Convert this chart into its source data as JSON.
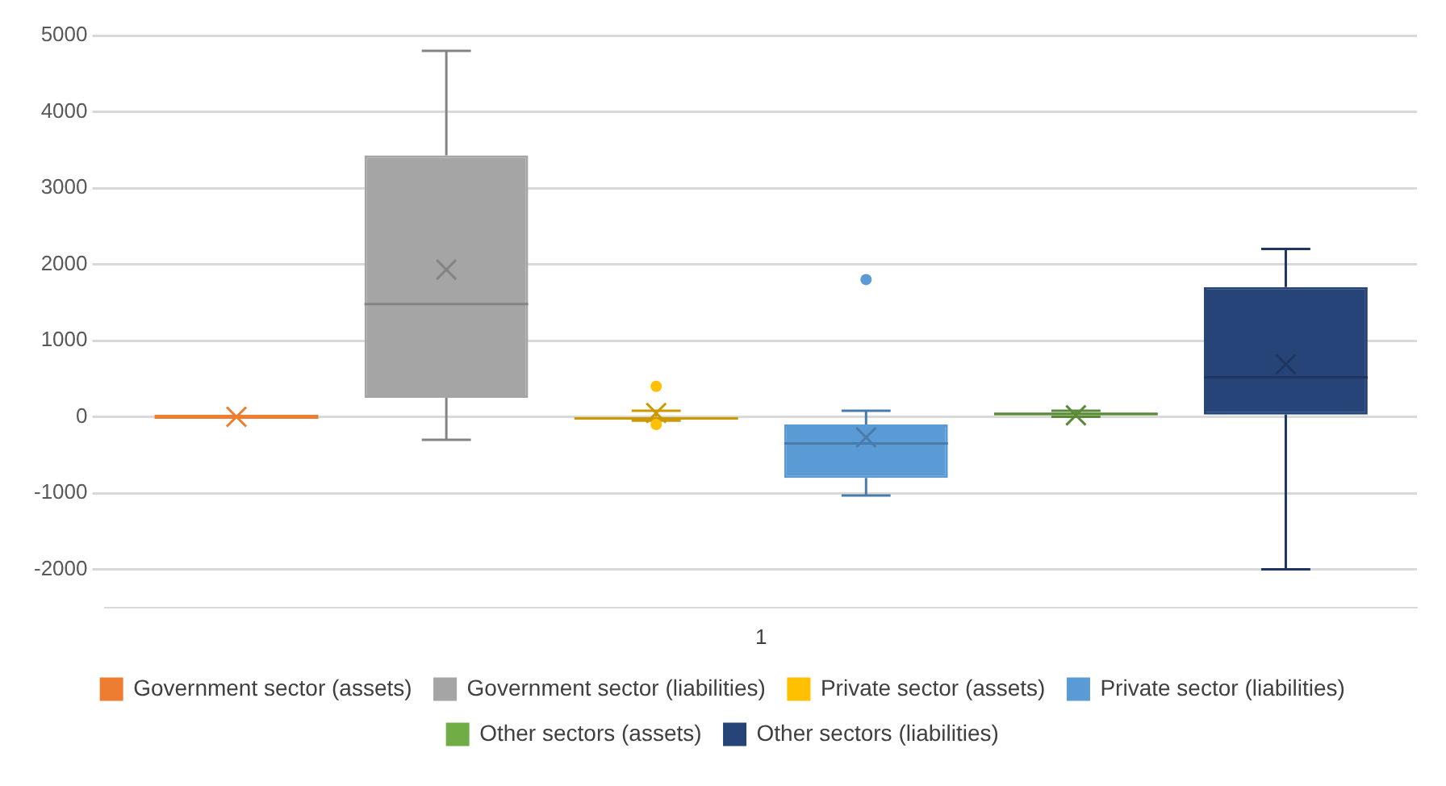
{
  "chart_data": {
    "type": "box",
    "categories": [
      "1"
    ],
    "ylim": [
      -2500,
      5000
    ],
    "yticks": [
      -2000,
      -1000,
      0,
      1000,
      2000,
      3000,
      4000,
      5000
    ],
    "grid": "y",
    "legend": "bottom",
    "marker": "cross",
    "series": [
      {
        "name": "Government sector (assets)",
        "color": "#ed7d31",
        "boxes": [
          {
            "low": 0,
            "q1": 0,
            "median": 0,
            "q3": 0,
            "high": 0,
            "mean": 0
          }
        ]
      },
      {
        "name": "Government sector (liabilities)",
        "color": "#a5a5a5",
        "boxes": [
          {
            "low": -300,
            "q1": 250,
            "median": 1480,
            "q3": 3430,
            "high": 4800,
            "mean": 1930
          }
        ]
      },
      {
        "name": "Private sector (assets)",
        "color": "#ffc000",
        "boxes": [
          {
            "low": -50,
            "q1": -40,
            "median": -20,
            "q3": 0,
            "high": 80,
            "mean": 50,
            "outliers": [
              400,
              -100
            ]
          }
        ]
      },
      {
        "name": "Private sector (liabilities)",
        "color": "#5b9bd5",
        "boxes": [
          {
            "low": -1030,
            "q1": -800,
            "median": -350,
            "q3": -100,
            "high": 80,
            "mean": -270,
            "outliers": [
              1800
            ]
          }
        ]
      },
      {
        "name": "Other sectors (assets)",
        "color": "#70ad47",
        "boxes": [
          {
            "low": 0,
            "q1": 20,
            "median": 40,
            "q3": 50,
            "high": 80,
            "mean": 20
          }
        ]
      },
      {
        "name": "Other sectors (liabilities)",
        "color": "#264478",
        "boxes": [
          {
            "low": -2000,
            "q1": 30,
            "median": 520,
            "q3": 1700,
            "high": 2200,
            "mean": 690
          }
        ]
      }
    ]
  }
}
